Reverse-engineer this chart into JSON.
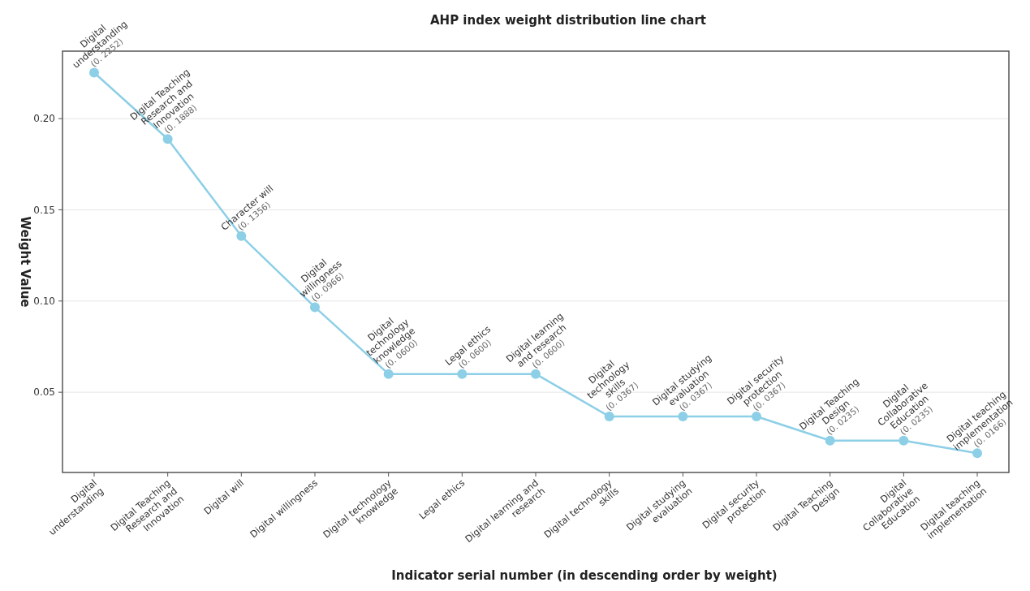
{
  "chart_data": {
    "type": "line",
    "title": "AHP index weight distribution line chart",
    "xlabel": "Indicator serial number (in descending order by weight)",
    "ylabel": "Weight Value",
    "categories": [
      "Digital understanding",
      "Digital Teaching Research and Innovation",
      "Digital will",
      "Digital willingness",
      "Digital technology knowledge",
      "Legal ethics",
      "Digital learning and research",
      "Digital technology skills",
      "Digital studying evaluation",
      "Digital security protection",
      "Digital Teaching Design",
      "Digital Collaborative Education",
      "Digital teaching implementation"
    ],
    "series": [
      {
        "color": "#8dcfe6",
        "values": [
          0.2252,
          0.1888,
          0.1356,
          0.0966,
          0.06,
          0.06,
          0.06,
          0.0367,
          0.0367,
          0.0367,
          0.0235,
          0.0235,
          0.0166
        ],
        "value_labels": [
          "(0. 2252)",
          "(0. 1888)",
          "(0. 1356)",
          "(0. 0966)",
          "(0. 0600)",
          "(0. 0600)",
          "(0. 0600)",
          "(0. 0367)",
          "(0. 0367)",
          "(0. 0367)",
          "(0. 0235)",
          "(0. 0235)",
          "(0. 0166)"
        ]
      }
    ],
    "annotations": [
      {
        "text": "Digital understanding",
        "x": "Digital understanding",
        "y": 0.2252
      },
      {
        "text": "Digital Teaching Research and Innovation",
        "x": "Digital Teaching Research and Innovation",
        "y": 0.1888
      },
      {
        "text": "Character will",
        "x": "Digital will",
        "y": 0.1356
      },
      {
        "text": "Digital willingness",
        "x": "Digital willingness",
        "y": 0.0966
      },
      {
        "text": "Digital technology knowledge",
        "x": "Digital technology knowledge",
        "y": 0.06
      },
      {
        "text": "Legal ethics",
        "x": "Legal ethics",
        "y": 0.06
      },
      {
        "text": "Digital learning and research",
        "x": "Digital learning and research",
        "y": 0.06
      },
      {
        "text": "Digital technology skills",
        "x": "Digital technology skills",
        "y": 0.0367
      },
      {
        "text": "Digital studying evaluation",
        "x": "Digital studying evaluation",
        "y": 0.0367
      },
      {
        "text": "Digital security protection",
        "x": "Digital security protection",
        "y": 0.0367
      },
      {
        "text": "Digital Teaching Design",
        "x": "Digital Teaching Design",
        "y": 0.0235
      },
      {
        "text": "Digital Collaborative Education",
        "x": "Digital Collaborative Education",
        "y": 0.0235
      },
      {
        "text": "Digital teaching implementation",
        "x": "Digital teaching implementation",
        "y": 0.0166
      }
    ],
    "ylim": [
      0.006,
      0.237
    ],
    "yticks": [
      {
        "value": 0.05,
        "label": "0.05"
      },
      {
        "value": 0.1,
        "label": "0.10"
      },
      {
        "value": 0.15,
        "label": "0.15"
      },
      {
        "value": 0.2,
        "label": "0.20"
      }
    ],
    "grid": "y",
    "marker": "circle",
    "line_style": "solid"
  }
}
